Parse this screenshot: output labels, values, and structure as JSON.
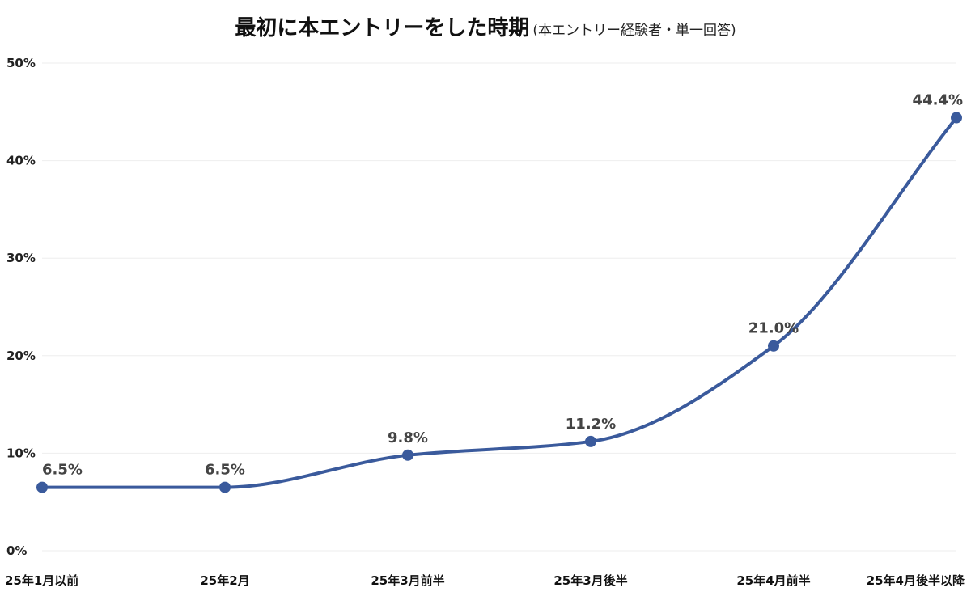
{
  "chart": {
    "title": "最初に本エントリーをした時期",
    "subtitle": "(本エントリー経験者・単一回答)"
  },
  "chart_data": {
    "type": "line",
    "title": "最初に本エントリーをした時期",
    "subtitle": "(本エントリー経験者・単一回答)",
    "categories": [
      "25年1月以前",
      "25年2月",
      "25年3月前半",
      "25年3月後半",
      "25年4月前半",
      "25年4月後半以降"
    ],
    "values": [
      6.5,
      6.5,
      9.8,
      11.2,
      21.0,
      44.4
    ],
    "data_labels": [
      "6.5%",
      "6.5%",
      "9.8%",
      "11.2%",
      "21.0%",
      "44.4%"
    ],
    "y_ticks": [
      "0%",
      "10%",
      "20%",
      "30%",
      "40%",
      "50%"
    ],
    "ylim": [
      0,
      50
    ],
    "xlabel": "",
    "ylabel": "",
    "grid": true,
    "legend": "none",
    "smooth": true,
    "colors": {
      "line": "#3a5a9c",
      "marker": "#3a5a9c",
      "grid": "#eeeeee"
    }
  }
}
